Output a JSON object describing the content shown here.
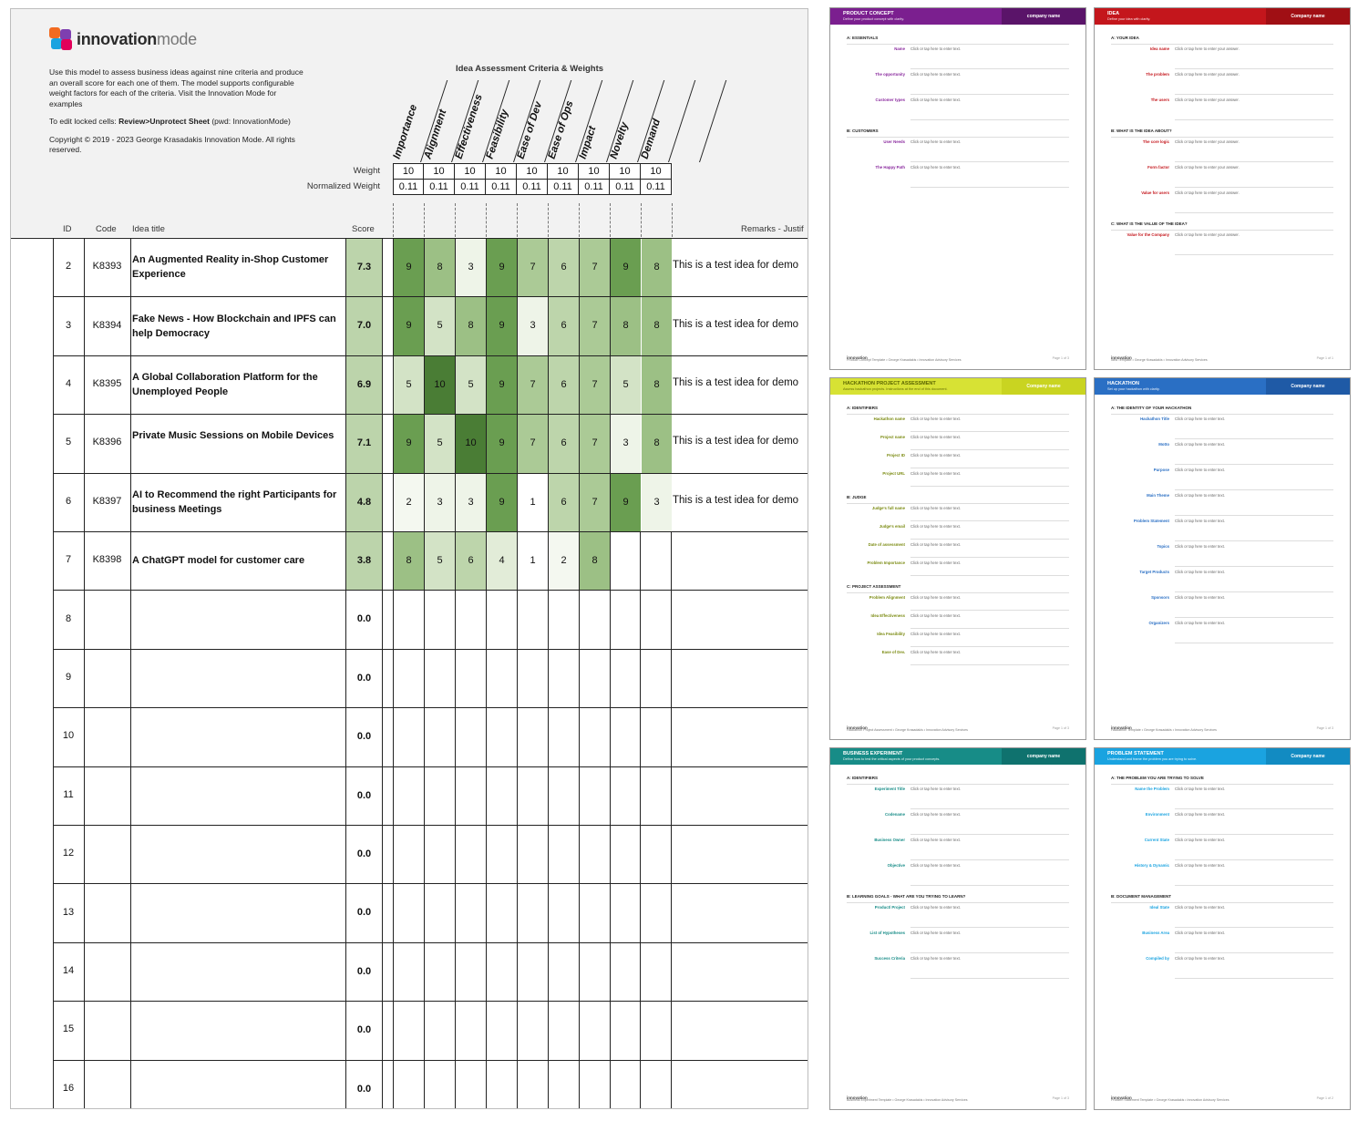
{
  "logo": {
    "brand_bold": "innovation",
    "brand_light": "mode"
  },
  "intro": {
    "p1": "Use this model to assess business ideas against nine criteria and produce an overall score for each one of them. The model supports configurable weight factors for each of the criteria. Visit the Innovation Mode for examples",
    "p2_prefix": "To edit locked cells: ",
    "p2_bold": "Review>Unprotect Sheet",
    "p2_suffix": " (pwd: InnovationMode)",
    "p3": "Copyright © 2019 - 2023 George Krasadakis Innovation Mode. All rights reserved."
  },
  "criteria_title": "Idea Assessment Criteria & Weights",
  "criteria": [
    "Importance",
    "Alignment",
    "Effectiveness",
    "Feasibility",
    "Ease of Dev",
    "Ease of Ops",
    "Impact",
    "Novelty",
    "Demand"
  ],
  "weight_label": "Weight",
  "normalized_label": "Normalized Weight",
  "weights": [
    "10",
    "10",
    "10",
    "10",
    "10",
    "10",
    "10",
    "10",
    "10"
  ],
  "normalized_weights": [
    "0.11",
    "0.11",
    "0.11",
    "0.11",
    "0.11",
    "0.11",
    "0.11",
    "0.11",
    "0.11"
  ],
  "columns": {
    "id": "ID",
    "code": "Code",
    "title": "Idea title",
    "score": "Score",
    "remarks": "Remarks - Justif"
  },
  "ideas": [
    {
      "id": "2",
      "code": "K8393",
      "title": "An Augmented Reality in-Shop Customer Experience",
      "score": "7.3",
      "values": [
        "9",
        "8",
        "3",
        "9",
        "7",
        "6",
        "7",
        "9",
        "8"
      ],
      "remark": "This is a test idea for demo"
    },
    {
      "id": "3",
      "code": "K8394",
      "title": "Fake News - How Blockchain and IPFS can help Democracy",
      "score": "7.0",
      "values": [
        "9",
        "5",
        "8",
        "9",
        "3",
        "6",
        "7",
        "8",
        "8"
      ],
      "remark": "This is a test idea for demo"
    },
    {
      "id": "4",
      "code": "K8395",
      "title": "A Global Collaboration Platform for the Unemployed People",
      "score": "6.9",
      "values": [
        "5",
        "10",
        "5",
        "9",
        "7",
        "6",
        "7",
        "5",
        "8"
      ],
      "remark": "This is a test idea for demo"
    },
    {
      "id": "5",
      "code": "K8396",
      "title": "Private Music Sessions on Mobile Devices",
      "score": "7.1",
      "values": [
        "9",
        "5",
        "10",
        "9",
        "7",
        "6",
        "7",
        "3",
        "8"
      ],
      "remark": "This is a test idea for demo"
    },
    {
      "id": "6",
      "code": "K8397",
      "title": "AI to Recommend the right Participants for business Meetings",
      "score": "4.8",
      "values": [
        "2",
        "3",
        "3",
        "9",
        "1",
        "6",
        "7",
        "9",
        "3"
      ],
      "remark": "This is a test idea for demo"
    },
    {
      "id": "7",
      "code": "K8398",
      "title": "A ChatGPT model for customer care",
      "score": "3.8",
      "values": [
        "8",
        "5",
        "6",
        "4",
        "1",
        "2",
        "8",
        "",
        ""
      ],
      "remark": ""
    },
    {
      "id": "8",
      "code": "",
      "title": "",
      "score": "0.0",
      "values": [
        "",
        "",
        "",
        "",
        "",
        "",
        "",
        "",
        ""
      ],
      "remark": ""
    },
    {
      "id": "9",
      "code": "",
      "title": "",
      "score": "0.0",
      "values": [
        "",
        "",
        "",
        "",
        "",
        "",
        "",
        "",
        ""
      ],
      "remark": ""
    },
    {
      "id": "10",
      "code": "",
      "title": "",
      "score": "0.0",
      "values": [
        "",
        "",
        "",
        "",
        "",
        "",
        "",
        "",
        ""
      ],
      "remark": ""
    },
    {
      "id": "11",
      "code": "",
      "title": "",
      "score": "0.0",
      "values": [
        "",
        "",
        "",
        "",
        "",
        "",
        "",
        "",
        ""
      ],
      "remark": ""
    },
    {
      "id": "12",
      "code": "",
      "title": "",
      "score": "0.0",
      "values": [
        "",
        "",
        "",
        "",
        "",
        "",
        "",
        "",
        ""
      ],
      "remark": ""
    },
    {
      "id": "13",
      "code": "",
      "title": "",
      "score": "0.0",
      "values": [
        "",
        "",
        "",
        "",
        "",
        "",
        "",
        "",
        ""
      ],
      "remark": ""
    },
    {
      "id": "14",
      "code": "",
      "title": "",
      "score": "0.0",
      "values": [
        "",
        "",
        "",
        "",
        "",
        "",
        "",
        "",
        ""
      ],
      "remark": ""
    },
    {
      "id": "15",
      "code": "",
      "title": "",
      "score": "0.0",
      "values": [
        "",
        "",
        "",
        "",
        "",
        "",
        "",
        "",
        ""
      ],
      "remark": ""
    },
    {
      "id": "16",
      "code": "",
      "title": "",
      "score": "0.0",
      "values": [
        "",
        "",
        "",
        "",
        "",
        "",
        "",
        "",
        ""
      ],
      "remark": ""
    }
  ],
  "heat_colors": {
    "1": "#ffffff",
    "2": "#f4f8f0",
    "3": "#eef4e8",
    "4": "#e2ecd8",
    "5": "#d3e3c6",
    "6": "#bdd5ab",
    "7": "#abca96",
    "8": "#9cc085",
    "9": "#6a9e51",
    "10": "#4a7d35"
  },
  "score_color": "#bcd4ab",
  "templates": [
    {
      "title": "PRODUCT CONCEPT",
      "subtitle": "Define your product concept with clarity.",
      "company": "company name",
      "bar_color": "#7b1f8f",
      "company_bg": "#5a1469",
      "accent": "#8a2a9e",
      "sections": [
        "A: ESSENTIALS",
        "B: CUSTOMERS"
      ],
      "fields": [
        "Name",
        "The opportunity",
        "Customer types",
        "User Needs",
        "The Happy Path"
      ],
      "placeholder": "Click or tap here to enter text.",
      "footer": "Product Concept Template • George Krasadakis • Innovation Advisory Services",
      "page": "Page 1 of 3"
    },
    {
      "title": "IDEA",
      "subtitle": "Define your idea with clarity.",
      "company": "Company name",
      "bar_color": "#c4161c",
      "company_bg": "#a00f14",
      "accent": "#c4161c",
      "sections": [
        "A: YOUR IDEA",
        "B: WHAT IS THE IDEA ABOUT?",
        "C: WHAT IS THE VALUE OF THE IDEA?"
      ],
      "fields": [
        "Idea name",
        "The problem",
        "The users",
        "The core logic",
        "Form factor",
        "Value for users",
        "Value for the Company"
      ],
      "placeholder": "Click or tap here to enter your answer.",
      "footer": "Idea Template • George Krasadakis • Innovation Advisory Services",
      "page": "Page 1 of 1"
    },
    {
      "title": "HACKATHON PROJECT ASSESSMENT",
      "subtitle": "Assess hackathon projects. Instructions at the end of this document.",
      "company": "Company name",
      "bar_color": "#d7e234",
      "company_bg": "#c9d421",
      "accent": "#7a8a10",
      "sections": [
        "A: IDENTIFIERS",
        "B: JUDGE",
        "C: PROJECT ASSESSMENT"
      ],
      "fields": [
        "Hackathon name",
        "Project name",
        "Project ID",
        "Project URL",
        "Judge's full name",
        "Judge's email",
        "Date of assessment",
        "Problem Importance",
        "Problem Alignment",
        "Idea Effectiveness",
        "Idea Feasibility",
        "Ease of Dev."
      ],
      "placeholder": "Click or tap here to enter text.",
      "footer": "Hackathon Project Assessment • George Krasadakis • Innovation Advisory Services",
      "page": "Page 1 of 3"
    },
    {
      "title": "HACKATHON",
      "subtitle": "Set up your hackathon with clarity.",
      "company": "Company name",
      "bar_color": "#2a6fc4",
      "company_bg": "#1f5aa6",
      "accent": "#2a6fc4",
      "sections": [
        "A: THE IDENTITY OF YOUR HACKATHON"
      ],
      "fields": [
        "Hackathon Title",
        "Motto",
        "Purpose",
        "Main Theme",
        "Problem Statement",
        "Topics",
        "Target Products",
        "Sponsors",
        "Organizers"
      ],
      "placeholder": "Click or tap here to enter text.",
      "footer": "Hackathon Template • George Krasadakis • Innovation Advisory Services",
      "page": "Page 1 of 3"
    },
    {
      "title": "BUSINESS EXPERIMENT",
      "subtitle": "Define how to test the critical aspects of your product concepts.",
      "company": "company name",
      "bar_color": "#178c87",
      "company_bg": "#0f726e",
      "accent": "#178c87",
      "sections": [
        "A: IDENTIFIERS",
        "B: LEARNING GOALS - WHAT ARE YOU TRYING TO LEARN?"
      ],
      "fields": [
        "Experiment Title",
        "Codename",
        "Business Owner",
        "Objective",
        "Product/ Project",
        "List of Hypotheses",
        "Success Criteria"
      ],
      "placeholder": "Click or tap here to enter text.",
      "footer": "Business Experiment Template • George Krasadakis • Innovation Advisory Services",
      "page": "Page 1 of 3"
    },
    {
      "title": "PROBLEM STATEMENT",
      "subtitle": "Understand and frame the problem you are trying to solve.",
      "company": "Company name",
      "bar_color": "#1aa3e0",
      "company_bg": "#128bc2",
      "accent": "#1aa3e0",
      "sections": [
        "A: THE PROBLEM YOU ARE TRYING TO SOLVE",
        "B: DOCUMENT MANAGEMENT"
      ],
      "fields": [
        "Name the Problem",
        "Environment",
        "Current State",
        "History & Dynamic",
        "Ideal State",
        "Business Area",
        "Compiled by"
      ],
      "placeholder": "Click or tap here to enter text.",
      "footer": "Problem Statement Template • George Krasadakis • Innovation Advisory Services",
      "page": "Page 1 of 2"
    }
  ]
}
